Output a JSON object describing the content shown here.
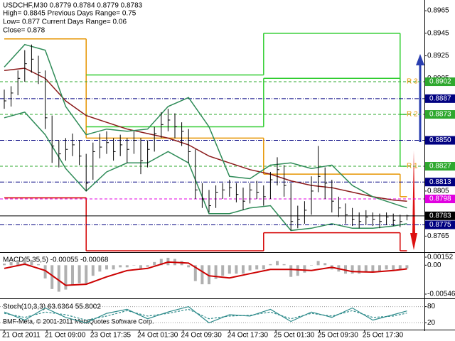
{
  "header": {
    "title": "USDCHF,M30  0.8779 0.8784 0.8779 0.8783",
    "info": [
      "High= 0.8845    Previous Days Range= 0.75",
      "Low= 0.877    Current Days Range= 0.06",
      "Close= 0.878"
    ]
  },
  "footer": "BMF-Meta, © 2001-2011 MetaQuotes Software Corp.",
  "chart_data": [
    {
      "type": "ohlc",
      "ylim": [
        0.8752,
        0.8972
      ],
      "yticks": [
        0.8965,
        0.8945,
        0.8925,
        0.8905,
        0.8805,
        0.8765
      ],
      "bar_color": "#000000",
      "xticks": [
        {
          "value": 0,
          "label": "21 Oct 2011"
        },
        {
          "value": 6.25,
          "label": "21 Oct 09:00"
        },
        {
          "value": 12.9,
          "label": "23 Oct 17:35"
        },
        {
          "value": 19.8,
          "label": "24 Oct 01:30"
        },
        {
          "value": 26.2,
          "label": "24 Oct 09:30"
        },
        {
          "value": 33,
          "label": "24 Oct 17:30"
        },
        {
          "value": 39.8,
          "label": "25 Oct 01:30"
        },
        {
          "value": 46.2,
          "label": "25 Oct 09:30"
        },
        {
          "value": 52.8,
          "label": "25 Oct 17:30"
        }
      ],
      "high": [
        0.8895,
        0.8898,
        0.8912,
        0.893,
        0.8935,
        0.8925,
        0.8912,
        0.8872,
        0.885,
        0.8852,
        0.8856,
        0.885,
        0.8838,
        0.8848,
        0.8856,
        0.8858,
        0.8852,
        0.8855,
        0.8852,
        0.8858,
        0.8852,
        0.885,
        0.8862,
        0.8875,
        0.8878,
        0.8874,
        0.8866,
        0.886,
        0.8842,
        0.8812,
        0.8806,
        0.881,
        0.8812,
        0.8815,
        0.8812,
        0.8808,
        0.8812,
        0.8814,
        0.881,
        0.8822,
        0.8835,
        0.8828,
        0.8812,
        0.8792,
        0.8796,
        0.8818,
        0.8845,
        0.8826,
        0.8815,
        0.88,
        0.8794,
        0.879,
        0.8786,
        0.8788,
        0.8786,
        0.8785,
        0.8786,
        0.8785,
        0.8784,
        0.8784
      ],
      "low": [
        0.8878,
        0.888,
        0.889,
        0.8902,
        0.891,
        0.89,
        0.886,
        0.883,
        0.8826,
        0.8832,
        0.8836,
        0.8828,
        0.8805,
        0.8815,
        0.8834,
        0.8838,
        0.8832,
        0.8836,
        0.883,
        0.8838,
        0.882,
        0.8826,
        0.884,
        0.8852,
        0.8858,
        0.8852,
        0.8845,
        0.883,
        0.8798,
        0.879,
        0.8786,
        0.879,
        0.8798,
        0.88,
        0.8795,
        0.8788,
        0.8794,
        0.8798,
        0.8792,
        0.8798,
        0.881,
        0.88,
        0.877,
        0.8772,
        0.8776,
        0.8784,
        0.8804,
        0.8798,
        0.8786,
        0.8782,
        0.8776,
        0.8774,
        0.8772,
        0.8775,
        0.8774,
        0.8772,
        0.8775,
        0.8774,
        0.8773,
        0.8779
      ],
      "close": [
        0.8885,
        0.8892,
        0.8905,
        0.8918,
        0.8922,
        0.891,
        0.887,
        0.8845,
        0.8838,
        0.8842,
        0.8846,
        0.8836,
        0.8812,
        0.884,
        0.8844,
        0.8848,
        0.884,
        0.8846,
        0.8842,
        0.885,
        0.8832,
        0.8842,
        0.8856,
        0.8864,
        0.8868,
        0.8862,
        0.8858,
        0.884,
        0.8806,
        0.8798,
        0.8792,
        0.8804,
        0.8806,
        0.8808,
        0.8802,
        0.8796,
        0.8806,
        0.8804,
        0.88,
        0.8815,
        0.8824,
        0.881,
        0.8778,
        0.878,
        0.8788,
        0.8805,
        0.8818,
        0.8812,
        0.8796,
        0.879,
        0.8784,
        0.878,
        0.8778,
        0.8782,
        0.878,
        0.8778,
        0.8782,
        0.8779,
        0.8778,
        0.8783
      ],
      "line_x": [
        0,
        3,
        6,
        9,
        12,
        15,
        18,
        21,
        24,
        27,
        30,
        33,
        36,
        39,
        42,
        45,
        48,
        51,
        54,
        57,
        59
      ],
      "lines": [
        {
          "color": "#8b1a1a",
          "values": [
            0.8912,
            0.8914,
            0.8905,
            0.8885,
            0.8872,
            0.8866,
            0.886,
            0.8856,
            0.8852,
            0.8846,
            0.8836,
            0.883,
            0.8824,
            0.882,
            0.8814,
            0.881,
            0.8808,
            0.8804,
            0.88,
            0.8797,
            0.8796
          ]
        },
        {
          "color": "#2e8b57",
          "values": [
            0.8915,
            0.8935,
            0.893,
            0.888,
            0.8855,
            0.886,
            0.8858,
            0.886,
            0.888,
            0.8888,
            0.8862,
            0.8818,
            0.8816,
            0.8828,
            0.883,
            0.8825,
            0.8828,
            0.881,
            0.88,
            0.8794,
            0.879
          ]
        },
        {
          "color": "#2e8b57",
          "values": [
            0.887,
            0.8875,
            0.8855,
            0.8825,
            0.8805,
            0.8822,
            0.883,
            0.883,
            0.884,
            0.883,
            0.8785,
            0.8785,
            0.879,
            0.8792,
            0.877,
            0.8772,
            0.8776,
            0.8772,
            0.8772,
            0.8774,
            0.8776
          ]
        }
      ],
      "step_x": [
        0,
        12,
        38,
        58,
        59
      ],
      "steps": [
        {
          "color": "#e69500",
          "values": [
            0.894,
            0.8852,
            0.882,
            0.88
          ]
        },
        {
          "color": "#32cd32",
          "values": [
            null,
            0.8908,
            0.8945,
            0.8873
          ]
        },
        {
          "color": "#32cd32",
          "values": [
            null,
            0.8862,
            0.8905,
            0.8827
          ]
        },
        {
          "color": "#d40000",
          "values": [
            0.8799,
            0.8752,
            0.8768,
            0.8752
          ]
        }
      ],
      "tag_color": "#e69500",
      "levels": [
        {
          "value": 0.8902,
          "label": "0.8902",
          "color": "#2ea82e",
          "style": "dash",
          "tag": "R 3"
        },
        {
          "value": 0.8887,
          "label": "0.8887",
          "color": "#000080",
          "style": "dashdot"
        },
        {
          "value": 0.8873,
          "label": "0.8873",
          "color": "#2ea82e",
          "style": "dash",
          "tag": "R 2"
        },
        {
          "value": 0.885,
          "label": "0.8850",
          "color": "#000080",
          "style": "dashdot"
        },
        {
          "value": 0.8827,
          "label": "0.8827",
          "color": "#2ea82e",
          "style": "dash",
          "tag": "R 1"
        },
        {
          "value": 0.8813,
          "label": "0.8813",
          "color": "#000080",
          "style": "dashdot"
        },
        {
          "value": 0.8798,
          "label": "0.8798",
          "color": "#e000e0",
          "style": "dash"
        },
        {
          "value": 0.8783,
          "label": "0.8783",
          "color": "#000000",
          "style": "solid"
        },
        {
          "value": 0.8775,
          "label": "0.8775",
          "color": "#000080",
          "style": "dashdot"
        }
      ]
    },
    {
      "type": "macd",
      "title": "MACD(5,35,5) -0.00055 -0.00068",
      "ylim": [
        -0.00546,
        0.00152
      ],
      "yticks": [
        0.00152,
        {
          "value": 0,
          "label": "0.00"
        },
        -0.00546
      ],
      "hist_color": "#b0b0b0",
      "line_color": "#cc0000",
      "values": [
        0.0003,
        0.0006,
        0.001,
        0.0012,
        0.001,
        0.0002,
        -0.0025,
        -0.0045,
        -0.005,
        -0.0046,
        -0.0038,
        -0.0034,
        -0.0035,
        -0.002,
        -0.0012,
        -0.0008,
        -0.0008,
        -0.0004,
        -0.0004,
        0,
        -0.0006,
        -0.0003,
        0.0006,
        0.0012,
        0.0014,
        0.0012,
        0.0008,
        -0.0004,
        -0.003,
        -0.0036,
        -0.0036,
        -0.0026,
        -0.002,
        -0.0016,
        -0.0016,
        -0.0016,
        -0.001,
        -0.0008,
        -0.0008,
        0.0002,
        0.0008,
        0.0002,
        -0.0022,
        -0.002,
        -0.0014,
        0,
        0.0008,
        0.0004,
        -0.0008,
        -0.0012,
        -0.0016,
        -0.0016,
        -0.0016,
        -0.0012,
        -0.0012,
        -0.0012,
        -0.0008,
        -0.0009,
        -0.0008,
        -0.0006
      ],
      "line_x": [
        0,
        3,
        6,
        9,
        12,
        15,
        18,
        21,
        24,
        27,
        30,
        33,
        36,
        39,
        42,
        45,
        48,
        51,
        54,
        57,
        59
      ],
      "signal": [
        -0.0006,
        0.0002,
        -0.001,
        -0.0038,
        -0.0036,
        -0.0022,
        -0.001,
        -0.0006,
        0.0006,
        0.0004,
        -0.002,
        -0.0024,
        -0.0016,
        -0.0008,
        -0.0008,
        -0.001,
        -0.0004,
        -0.0012,
        -0.0013,
        -0.001,
        -0.0007
      ]
    },
    {
      "type": "stoch",
      "title": "Stoch(10,3,3) 63.6364 55.8002",
      "ylim": [
        0,
        100
      ],
      "yticks": [
        80,
        20
      ],
      "x": [
        0,
        3,
        6,
        9,
        12,
        15,
        18,
        21,
        24,
        27,
        30,
        33,
        36,
        39,
        42,
        45,
        48,
        51,
        54,
        57,
        59
      ],
      "series": [
        {
          "color": "#2e8b8b",
          "dash": false,
          "values": [
            60,
            30,
            75,
            40,
            20,
            55,
            70,
            35,
            60,
            80,
            20,
            50,
            45,
            70,
            25,
            60,
            40,
            75,
            30,
            50,
            64
          ]
        },
        {
          "color": "#2e8b8b",
          "dash": true,
          "values": [
            55,
            40,
            60,
            50,
            30,
            45,
            65,
            45,
            55,
            70,
            35,
            45,
            48,
            60,
            35,
            55,
            45,
            65,
            40,
            45,
            56
          ]
        }
      ]
    }
  ]
}
